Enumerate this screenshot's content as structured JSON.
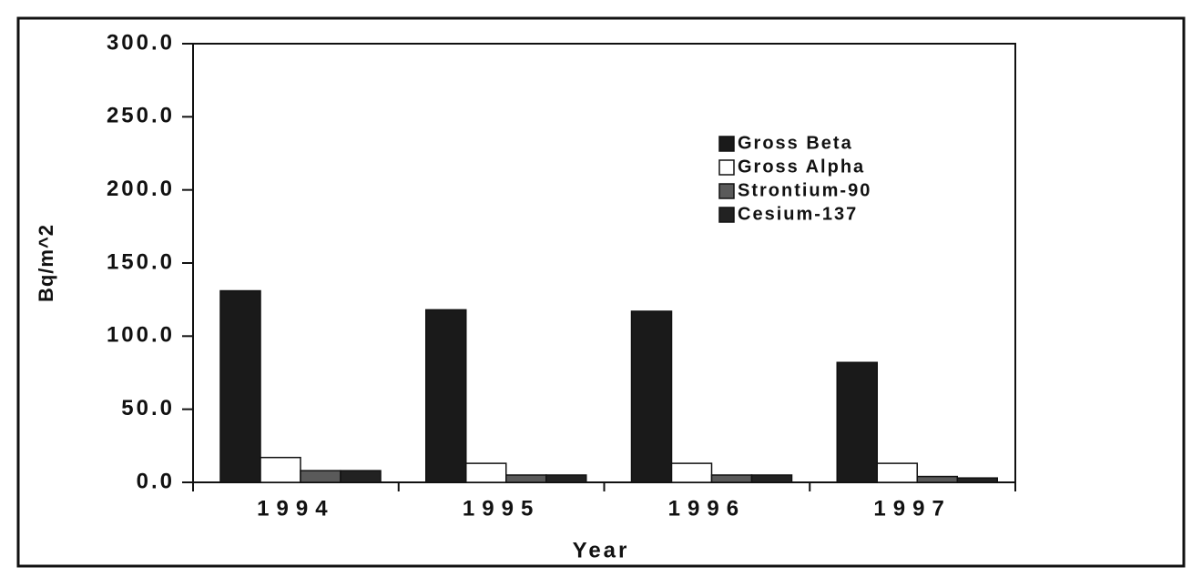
{
  "chart_data": {
    "type": "bar",
    "categories": [
      "1994",
      "1995",
      "1996",
      "1997"
    ],
    "series": [
      {
        "name": "Gross Beta",
        "color": "#1a1a1a",
        "values": [
          131,
          118,
          117,
          82
        ]
      },
      {
        "name": "Gross Alpha",
        "color": "#ffffff",
        "values": [
          17,
          13,
          13,
          13
        ]
      },
      {
        "name": "Strontium-90",
        "color": "#5a5a5a",
        "values": [
          8,
          5,
          5,
          4
        ]
      },
      {
        "name": "Cesium-137",
        "color": "#222222",
        "values": [
          8,
          5,
          5,
          3
        ]
      }
    ],
    "ylabel": "Bq/m^2",
    "xlabel": "Year",
    "ylim": [
      0,
      300
    ],
    "yticks": [
      {
        "value": 0,
        "label": "0.0"
      },
      {
        "value": 50,
        "label": "50.0"
      },
      {
        "value": 100,
        "label": "100.0"
      },
      {
        "value": 150,
        "label": "150.0"
      },
      {
        "value": 200,
        "label": "200.0"
      },
      {
        "value": 250,
        "label": "250.0"
      },
      {
        "value": 300,
        "label": "300.0"
      }
    ],
    "legend": "upper right"
  }
}
